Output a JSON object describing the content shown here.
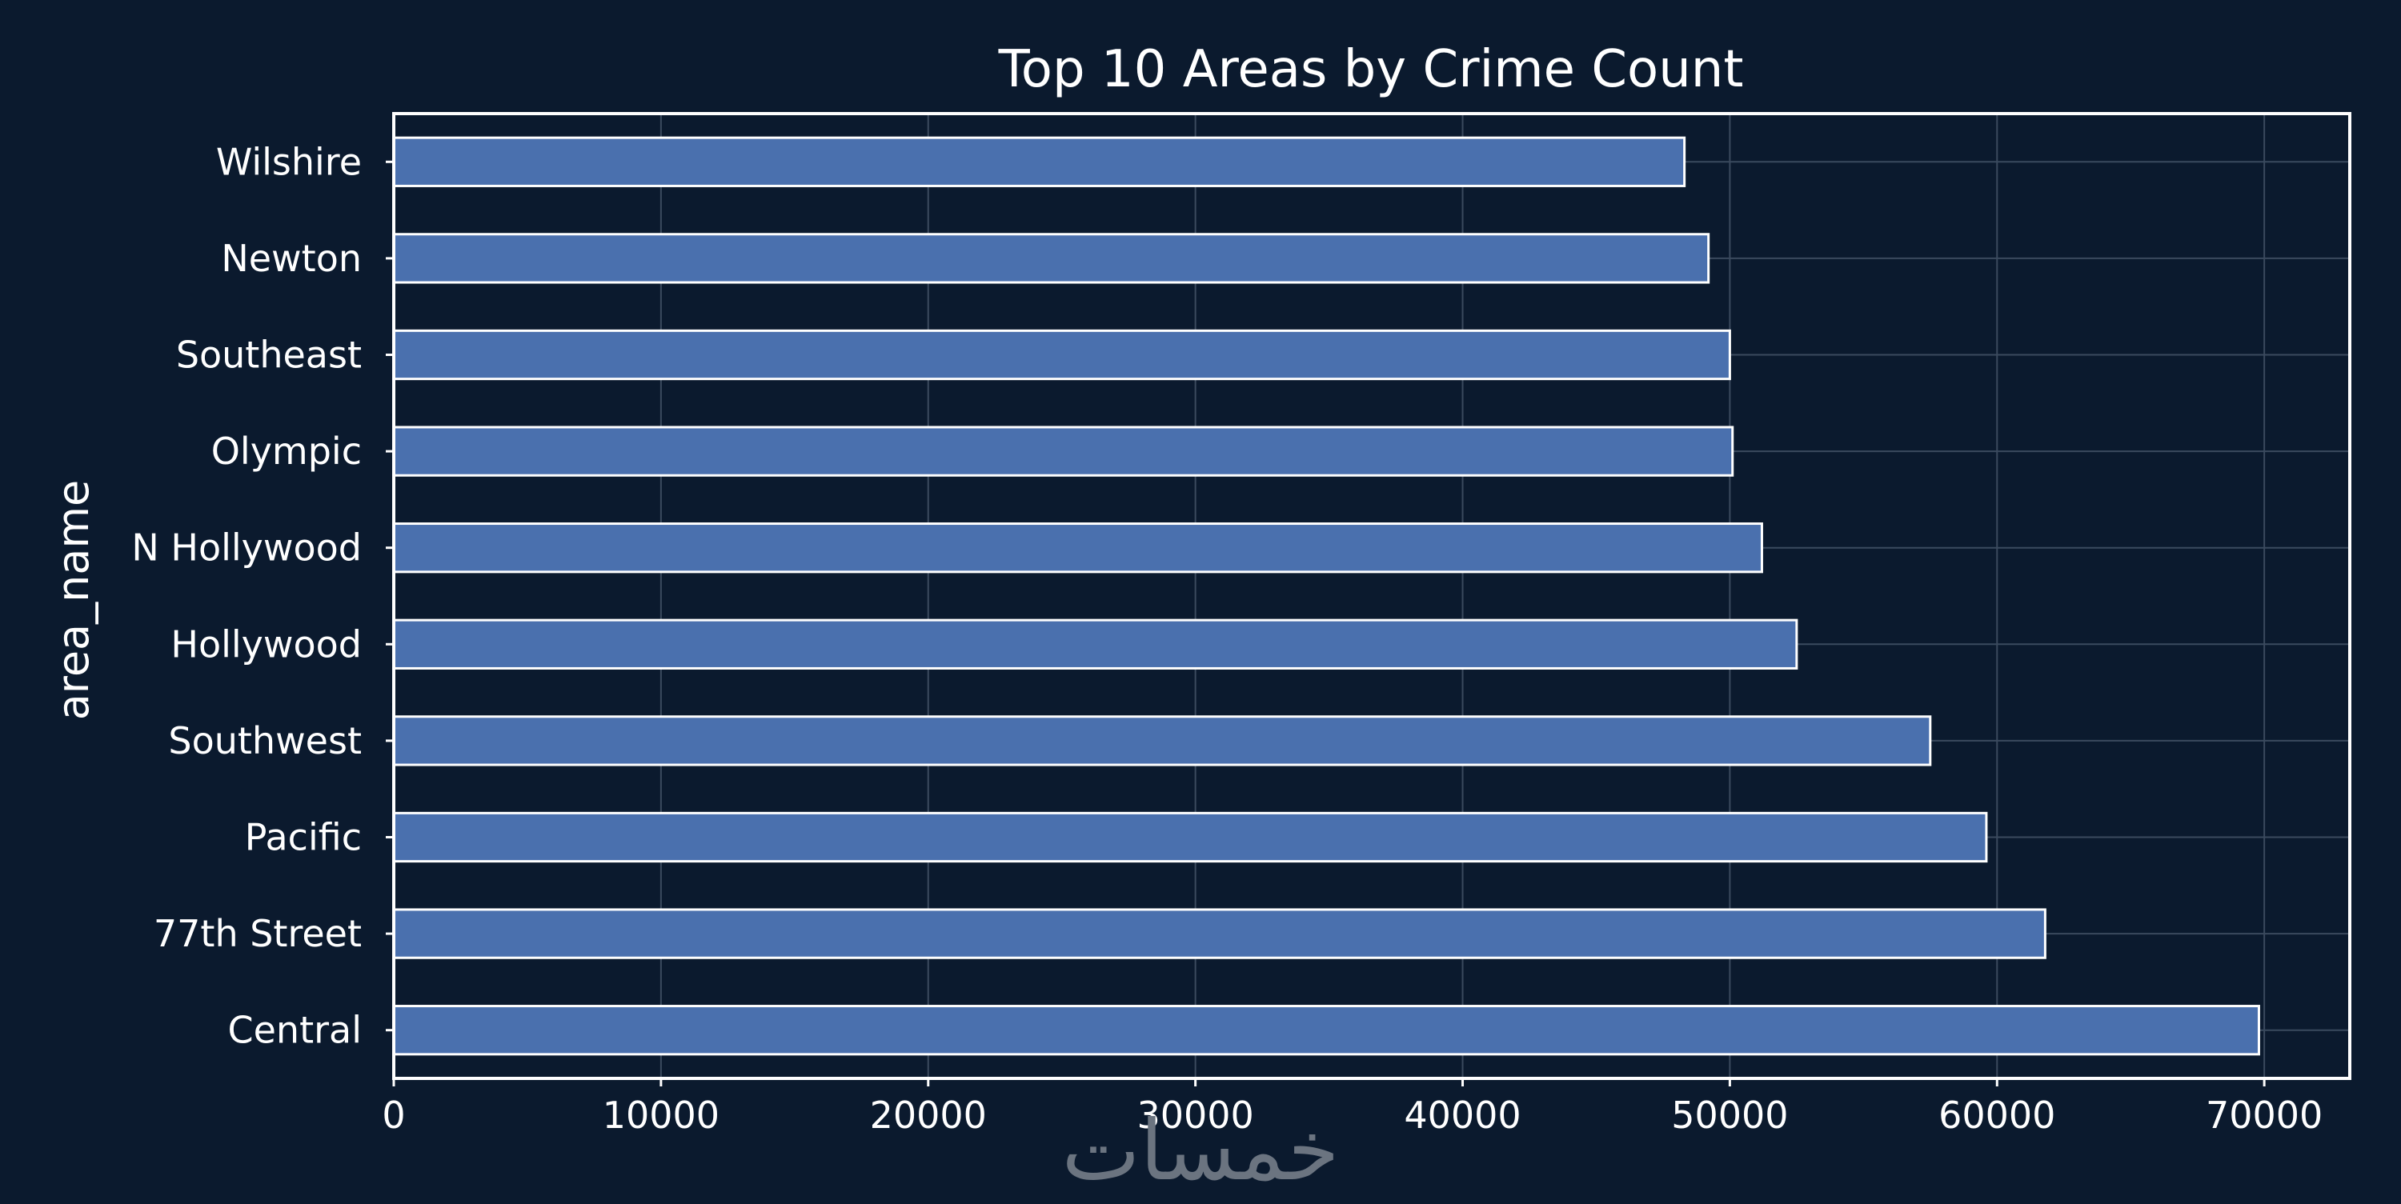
{
  "chart_data": {
    "type": "bar",
    "orientation": "horizontal",
    "title": "Top 10 Areas by Crime Count",
    "xlabel": "",
    "ylabel": "area_name",
    "categories": [
      "Wilshire",
      "Newton",
      "Southeast",
      "Olympic",
      "N Hollywood",
      "Hollywood",
      "Southwest",
      "Pacific",
      "77th Street",
      "Central"
    ],
    "values": [
      48300,
      49200,
      50000,
      50100,
      51200,
      52500,
      57500,
      59600,
      61800,
      69800
    ],
    "xlim": [
      0,
      73200
    ],
    "xticks": [
      0,
      10000,
      20000,
      30000,
      40000,
      50000,
      60000,
      70000
    ],
    "grid": true,
    "colors": {
      "background": "#0b1a2e",
      "bar": "#4a70ae",
      "bar_edge": "#ffffff",
      "grid": "#3b4a5e",
      "text": "#ffffff"
    }
  },
  "watermark": {
    "text": "خمسات"
  }
}
